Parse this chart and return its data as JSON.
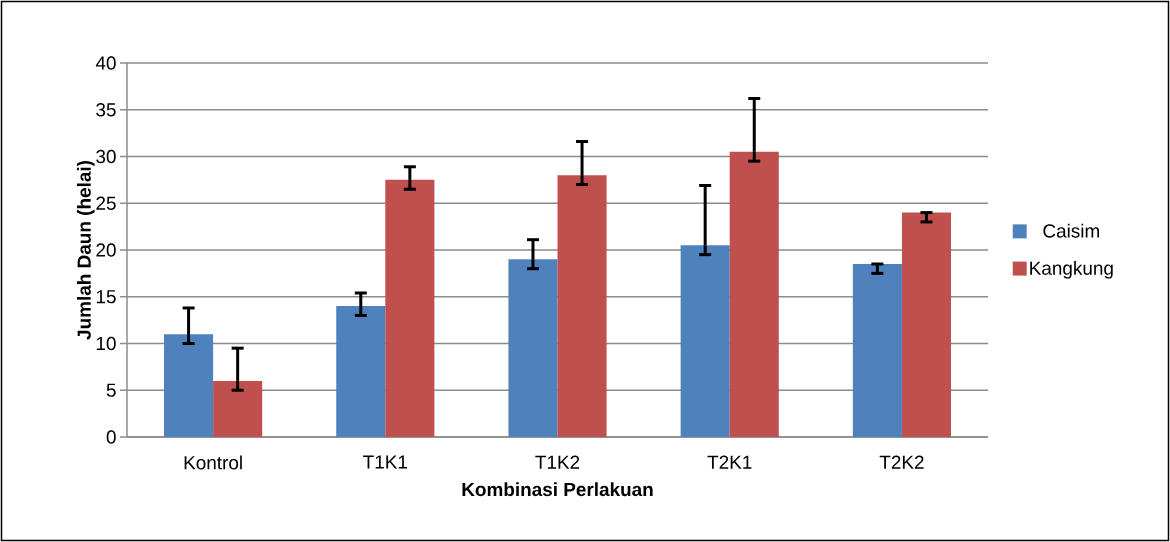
{
  "chart_data": {
    "type": "bar",
    "xlabel": "Kombinasi Perlakuan",
    "ylabel": "Jumlah Daun (helai)",
    "categories": [
      "Kontrol",
      "T1K1",
      "T1K2",
      "T2K1",
      "T2K2"
    ],
    "series": [
      {
        "name": "Caisim",
        "color": "#4f81bd",
        "values": [
          11,
          14,
          19,
          20.5,
          18.5
        ],
        "errors": [
          [
            10,
            13.8
          ],
          [
            13,
            15.4
          ],
          [
            18,
            21.1
          ],
          [
            19.5,
            26.9
          ],
          [
            17.5,
            18.5
          ]
        ]
      },
      {
        "name": "Kangkung",
        "color": "#c0504d",
        "values": [
          6,
          27.5,
          28,
          30.5,
          24
        ],
        "errors": [
          [
            5,
            9.5
          ],
          [
            26.5,
            28.9
          ],
          [
            27,
            31.6
          ],
          [
            29.5,
            36.2
          ],
          [
            23,
            24
          ]
        ]
      }
    ],
    "ylim": [
      0,
      40
    ],
    "yticks": [
      0,
      5,
      10,
      15,
      20,
      25,
      30,
      35,
      40
    ],
    "grid": "y",
    "legend": "right"
  }
}
